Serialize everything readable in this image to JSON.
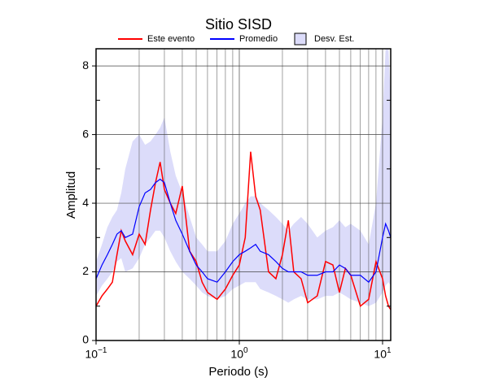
{
  "chart_data": {
    "type": "line",
    "title": "Sitio SISD",
    "x_label": "Periodo (s)",
    "y_label": "Amplitud",
    "x_log": true,
    "grid": true,
    "xlim": [
      0.1,
      11.4
    ],
    "ylim": [
      0,
      8.5
    ],
    "xticks": [
      {
        "value": 0.1,
        "label": "10−1"
      },
      {
        "value": 1,
        "label": "100"
      },
      {
        "value": 10,
        "label": "101"
      }
    ],
    "x_minor_ticks": [
      0.2,
      0.3,
      0.4,
      0.5,
      0.6,
      0.7,
      0.8,
      0.9,
      2,
      3,
      4,
      5,
      6,
      7,
      8,
      9
    ],
    "yticks": [
      0,
      2,
      4,
      6,
      8
    ],
    "y_minor_ticks": [
      1,
      3,
      5,
      7
    ],
    "x": [
      0.1,
      0.11,
      0.12,
      0.13,
      0.14,
      0.15,
      0.16,
      0.18,
      0.2,
      0.22,
      0.24,
      0.26,
      0.28,
      0.3,
      0.33,
      0.36,
      0.4,
      0.45,
      0.5,
      0.55,
      0.6,
      0.7,
      0.8,
      0.9,
      1.0,
      1.1,
      1.2,
      1.3,
      1.4,
      1.6,
      1.8,
      2.0,
      2.2,
      2.4,
      2.7,
      3.0,
      3.5,
      4,
      4.5,
      5,
      5.5,
      6,
      7,
      8,
      9,
      10,
      10.5,
      11,
      11.4
    ],
    "series": [
      {
        "name": "Este evento",
        "color": "#ff0000",
        "values": [
          1.0,
          1.3,
          1.5,
          1.7,
          2.5,
          3.2,
          2.9,
          2.5,
          3.1,
          2.8,
          3.8,
          4.6,
          5.2,
          4.4,
          4.0,
          3.7,
          4.5,
          2.6,
          2.3,
          1.7,
          1.4,
          1.2,
          1.5,
          1.9,
          2.2,
          3.0,
          5.5,
          4.2,
          3.8,
          2.0,
          1.8,
          2.5,
          3.5,
          2.0,
          1.8,
          1.1,
          1.3,
          2.3,
          2.2,
          1.4,
          2.1,
          1.9,
          1.0,
          1.2,
          2.3,
          1.8,
          1.3,
          1.0,
          0.9
        ]
      },
      {
        "name": "Promedio",
        "color": "#0000ff",
        "values": [
          1.8,
          2.2,
          2.5,
          2.8,
          3.1,
          3.2,
          3.0,
          3.1,
          3.9,
          4.3,
          4.4,
          4.6,
          4.7,
          4.6,
          4.0,
          3.5,
          3.1,
          2.6,
          2.2,
          2.0,
          1.8,
          1.7,
          2.0,
          2.3,
          2.5,
          2.6,
          2.7,
          2.8,
          2.6,
          2.5,
          2.3,
          2.1,
          2.0,
          2.0,
          2.0,
          1.9,
          1.9,
          2.0,
          2.0,
          2.2,
          2.1,
          1.9,
          1.9,
          1.7,
          2.0,
          3.0,
          3.4,
          3.2,
          3.0
        ]
      }
    ],
    "band": {
      "name": "Desv. Est.",
      "color": "#dcdcfa",
      "upper": [
        2.3,
        2.8,
        3.3,
        3.6,
        3.8,
        4.3,
        5.0,
        5.8,
        6.0,
        5.7,
        5.8,
        6.0,
        6.2,
        6.5,
        5.5,
        4.8,
        4.3,
        3.6,
        3.0,
        2.8,
        2.6,
        2.6,
        2.9,
        3.4,
        3.7,
        4.0,
        4.2,
        4.2,
        4.0,
        3.8,
        3.6,
        3.4,
        3.2,
        3.4,
        3.6,
        3.4,
        3.0,
        3.2,
        3.3,
        3.5,
        3.3,
        3.4,
        3.2,
        2.8,
        4.0,
        6.5,
        8.5,
        8.5,
        7.0
      ],
      "lower": [
        1.3,
        1.6,
        1.8,
        2.0,
        2.3,
        2.4,
        2.0,
        2.1,
        2.4,
        2.8,
        3.0,
        3.2,
        3.2,
        3.0,
        2.6,
        2.3,
        2.0,
        1.8,
        1.6,
        1.4,
        1.3,
        1.2,
        1.3,
        1.5,
        1.6,
        1.7,
        1.7,
        1.7,
        1.5,
        1.4,
        1.3,
        1.2,
        1.1,
        1.2,
        1.3,
        1.2,
        1.2,
        1.3,
        1.3,
        1.4,
        1.3,
        1.2,
        1.1,
        1.0,
        1.1,
        1.4,
        1.6,
        1.7,
        1.6
      ]
    }
  }
}
